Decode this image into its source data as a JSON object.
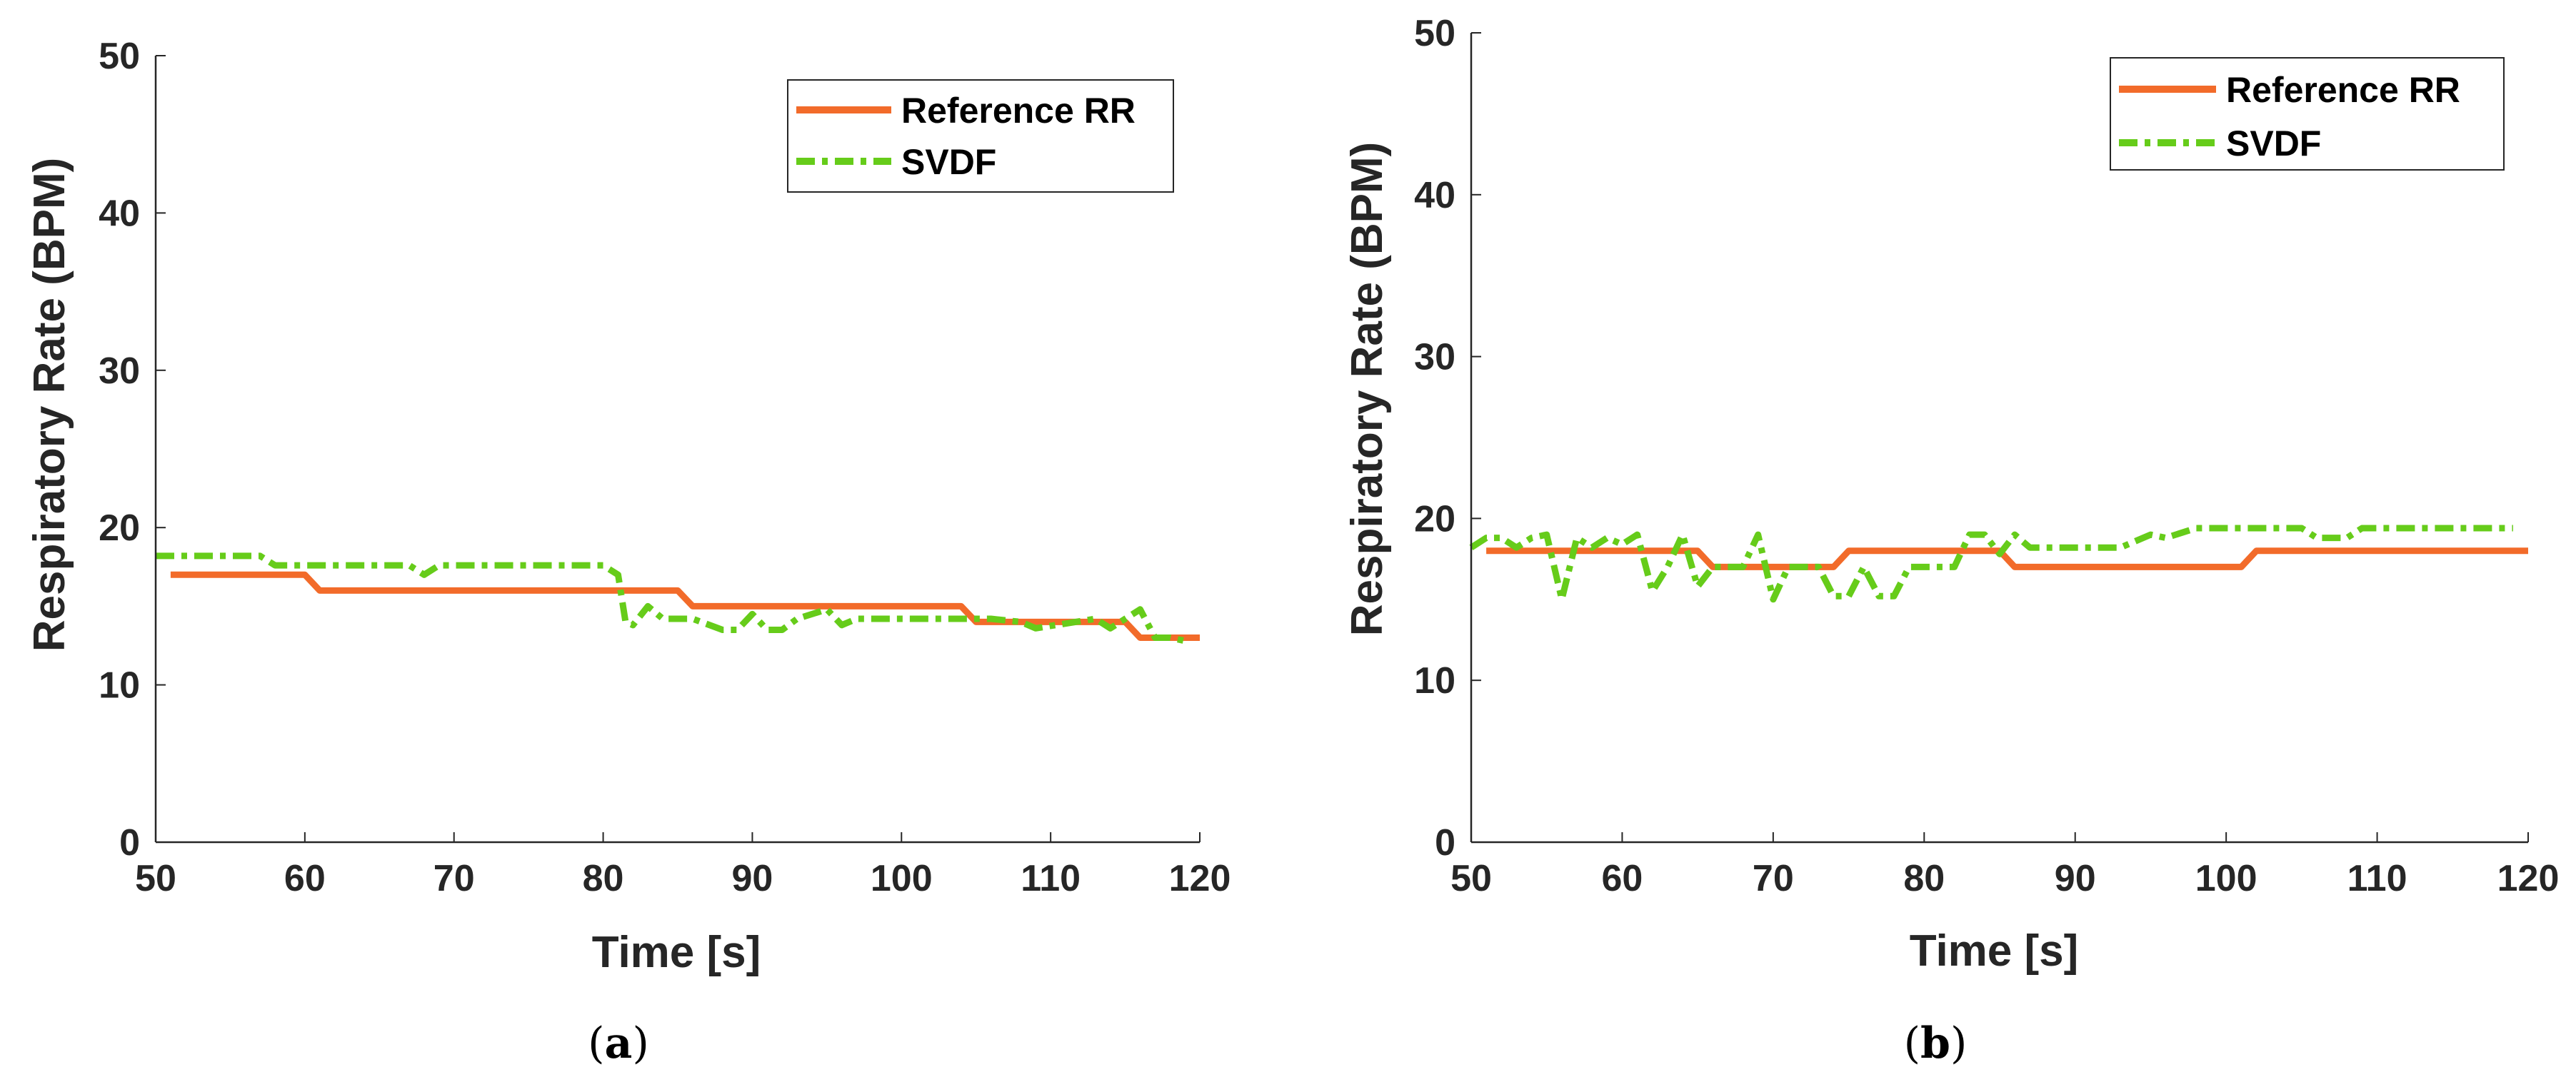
{
  "colors": {
    "reference": "#f26b2a",
    "svdf": "#66cc1a",
    "axis": "#262626"
  },
  "chart_data": [
    {
      "type": "line",
      "caption": "(a)",
      "caption_letter": "a",
      "xlabel": "Time [s]",
      "ylabel": "Respiratory Rate (BPM)",
      "xlim": [
        50,
        120
      ],
      "ylim": [
        0,
        50
      ],
      "xticks": [
        50,
        60,
        70,
        80,
        90,
        100,
        110,
        120
      ],
      "yticks": [
        0,
        10,
        20,
        30,
        40,
        50
      ],
      "legend_position": "top-right",
      "series": [
        {
          "name": "Reference RR",
          "style": "solid",
          "x": [
            51,
            60,
            61,
            85,
            86,
            104,
            105,
            115,
            116,
            120
          ],
          "y": [
            17,
            17,
            16,
            16,
            15,
            15,
            14,
            14,
            13,
            13
          ]
        },
        {
          "name": "SVDF",
          "style": "dashdot",
          "x": [
            50,
            57,
            58,
            67,
            68,
            69,
            80,
            81,
            81.5,
            82,
            83,
            84,
            86,
            88,
            89,
            90,
            91,
            92,
            93,
            95,
            96,
            97,
            104,
            106,
            108,
            109,
            113,
            114,
            115,
            116,
            117,
            118,
            119
          ],
          "y": [
            18.2,
            18.2,
            17.6,
            17.6,
            17.0,
            17.6,
            17.6,
            17.0,
            14.0,
            13.8,
            15.0,
            14.2,
            14.2,
            13.5,
            13.5,
            14.5,
            13.5,
            13.5,
            14.2,
            14.8,
            13.8,
            14.2,
            14.2,
            14.2,
            14.0,
            13.6,
            14.2,
            13.6,
            14.2,
            14.8,
            13.0,
            13.0,
            12.8
          ]
        }
      ]
    },
    {
      "type": "line",
      "caption": "(b)",
      "caption_letter": "b",
      "xlabel": "Time [s]",
      "ylabel": "Respiratory Rate (BPM)",
      "xlim": [
        50,
        120
      ],
      "ylim": [
        0,
        50
      ],
      "xticks": [
        50,
        60,
        70,
        80,
        90,
        100,
        110,
        120
      ],
      "yticks": [
        0,
        10,
        20,
        30,
        40,
        50
      ],
      "legend_position": "top-right",
      "series": [
        {
          "name": "Reference RR",
          "style": "solid",
          "x": [
            51,
            65,
            66,
            74,
            75,
            85,
            86,
            101,
            102,
            120
          ],
          "y": [
            18,
            18,
            17,
            17,
            18,
            18,
            17,
            17,
            18,
            18
          ]
        },
        {
          "name": "SVDF",
          "style": "dashdot",
          "x": [
            50,
            51,
            52,
            53,
            54,
            55,
            56,
            57,
            58,
            59,
            60,
            61,
            62,
            63,
            64,
            65,
            66,
            67,
            68,
            69,
            70,
            71,
            72,
            73,
            74,
            75,
            76,
            77,
            78,
            79,
            80,
            81,
            82,
            83,
            84,
            85,
            86,
            87,
            88,
            93,
            95,
            96,
            98,
            99,
            105,
            106,
            108,
            109,
            119
          ],
          "y": [
            18.2,
            18.8,
            18.8,
            18.2,
            18.8,
            19.0,
            15.0,
            18.8,
            18.2,
            18.8,
            18.4,
            19.0,
            15.5,
            17.0,
            19.0,
            15.8,
            17.0,
            17.0,
            17.0,
            19.0,
            15.0,
            17.0,
            17.0,
            17.0,
            15.2,
            15.2,
            17.0,
            15.2,
            15.2,
            17.0,
            17.0,
            17.0,
            17.0,
            19.0,
            19.0,
            17.8,
            19.0,
            18.2,
            18.2,
            18.2,
            19.0,
            18.8,
            19.4,
            19.4,
            19.4,
            18.8,
            18.8,
            19.4,
            19.4
          ]
        }
      ]
    }
  ]
}
